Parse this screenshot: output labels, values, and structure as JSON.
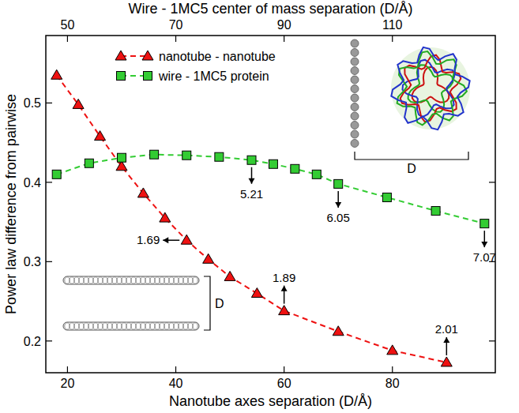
{
  "chart_data": {
    "type": "line",
    "x_label": "Nanotube axes separation (D/Å)",
    "x2_label": "Wire - 1MC5 center of mass separation (D/Å)",
    "y_label": "Power law difference from pairwise",
    "xlim": [
      16,
      99
    ],
    "xticks": [
      20,
      40,
      60,
      80
    ],
    "x2lim": [
      46,
      129
    ],
    "x2ticks": [
      50,
      70,
      90,
      110
    ],
    "ylim": [
      0.16,
      0.585
    ],
    "yticks": [
      0.2,
      0.3,
      0.4,
      0.5
    ],
    "legend": "upper left",
    "series": [
      {
        "name": "nanotube - nanotube",
        "color": "#ee1111",
        "marker": "triangle",
        "line_style": "dashed",
        "x": [
          18,
          22,
          26,
          30,
          34,
          38,
          42,
          46,
          50,
          55,
          60,
          70,
          80,
          90
        ],
        "values": [
          0.535,
          0.498,
          0.458,
          0.42,
          0.386,
          0.355,
          0.327,
          0.303,
          0.281,
          0.26,
          0.238,
          0.212,
          0.188,
          0.173
        ]
      },
      {
        "name": "wire - 1MC5 protein",
        "color": "#33cc33",
        "marker": "square",
        "line_style": "dashed",
        "axis": "x2",
        "x": [
          48,
          54,
          60,
          66,
          72,
          78,
          84,
          88,
          92,
          96,
          100,
          109,
          118,
          127
        ],
        "values": [
          0.41,
          0.424,
          0.431,
          0.435,
          0.434,
          0.432,
          0.428,
          0.423,
          0.417,
          0.41,
          0.398,
          0.381,
          0.364,
          0.348
        ]
      }
    ],
    "annotations": [
      {
        "text": "1.69",
        "x": 42,
        "y": 0.327,
        "arrow": "left"
      },
      {
        "text": "1.89",
        "x": 60,
        "y": 0.238,
        "arrow": "up"
      },
      {
        "text": "2.01",
        "x": 90,
        "y": 0.173,
        "arrow": "up"
      },
      {
        "text": "5.21",
        "x": 84,
        "y": 0.428,
        "arrow": "down",
        "axis": "x2"
      },
      {
        "text": "6.05",
        "x": 100,
        "y": 0.398,
        "arrow": "down",
        "axis": "x2"
      },
      {
        "text": "7.07",
        "x": 127,
        "y": 0.348,
        "arrow": "down",
        "axis": "x2"
      }
    ],
    "inset_labels": [
      "D",
      "D"
    ]
  }
}
